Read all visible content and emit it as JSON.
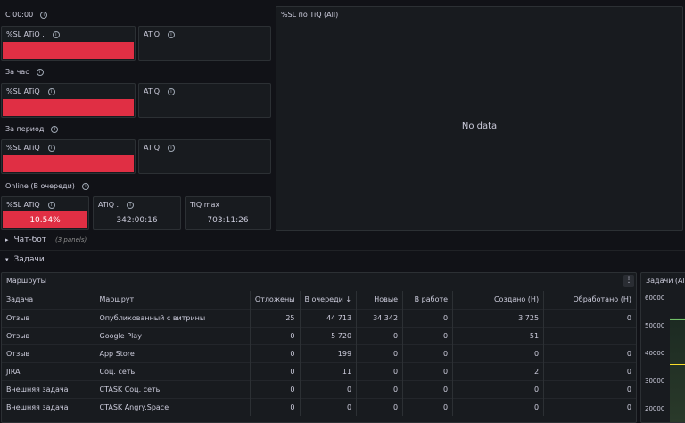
{
  "sections": {
    "since_midnight": "С 00:00",
    "last_hour": "За час",
    "period": "За период",
    "online": "Online (В очереди)"
  },
  "panels": {
    "sl_atiq_1": "%SL ATiQ .",
    "atiq_1": "ATiQ",
    "sl_atiq_2": "%SL ATiQ",
    "atiq_2": "ATiQ",
    "sl_atiq_3": "%SL ATiQ",
    "atiq_3": "ATiQ",
    "online_sl": {
      "title": "%SL ATiQ",
      "value": "10.54%"
    },
    "online_atiq": {
      "title": "ATiQ .",
      "value": "342:00:16"
    },
    "online_tiq_max": {
      "title": "TiQ max",
      "value": "703:11:26"
    },
    "sl_tiq_all": {
      "title": "%SL по TiQ (All)",
      "empty": "No data"
    }
  },
  "rows": {
    "chatbot": {
      "label": "Чат-бот",
      "sub": "(3 panels)"
    },
    "tasks": {
      "label": "Задачи"
    }
  },
  "routes_table": {
    "title": "Маршруты",
    "menu_icon": "⋮",
    "sort_icon": "↓",
    "headers": [
      "Задача",
      "Маршрут",
      "Отложены",
      "В очереди",
      "Новые",
      "В работе",
      "Создано (H)",
      "Обработано (H)"
    ],
    "rows": [
      [
        "Отзыв",
        "Опубликованный с витрины",
        "25",
        "44 713",
        "34 342",
        "0",
        "3 725",
        "0"
      ],
      [
        "Отзыв",
        "Google Play",
        "0",
        "5 720",
        "0",
        "0",
        "51",
        ""
      ],
      [
        "Отзыв",
        "App Store",
        "0",
        "199",
        "0",
        "0",
        "0",
        "0"
      ],
      [
        "JIRA",
        "Соц. сеть",
        "0",
        "11",
        "0",
        "0",
        "2",
        "0"
      ],
      [
        "Внешняя задача",
        "CTASK Соц. сеть",
        "0",
        "0",
        "0",
        "0",
        "0",
        "0"
      ],
      [
        "Внешняя задача",
        "CTASK Angry.Space",
        "0",
        "0",
        "0",
        "0",
        "0",
        "0"
      ]
    ]
  },
  "tasks_chart": {
    "title": "Задачи (All)",
    "ticks": [
      "60000",
      "50000",
      "40000",
      "30000",
      "20000"
    ]
  },
  "colors": {
    "red": "#e02f44",
    "panel": "#181b1f",
    "bg": "#111217"
  }
}
